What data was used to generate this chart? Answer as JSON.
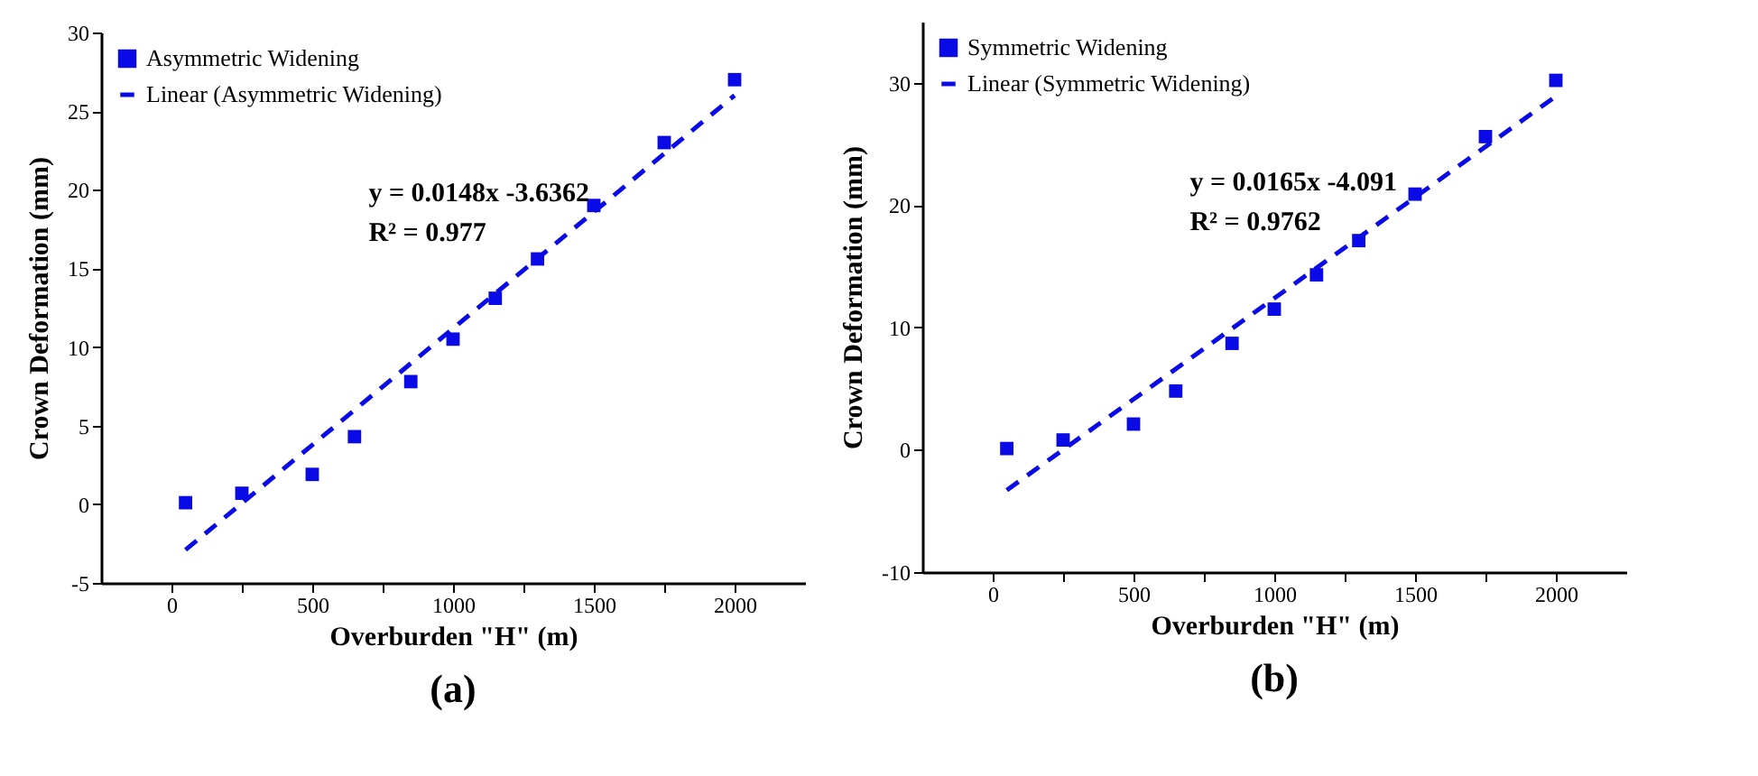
{
  "chart_data": [
    {
      "type": "scatter",
      "xlabel": "Overburden \"H\" (m)",
      "ylabel": "Crown Deformation (mm)",
      "annotations": [
        "y = 0.0148x -3.6362",
        "R² = 0.977",
        "(a)"
      ],
      "series": [
        {
          "name": "Asymmetric Widening",
          "type": "scatter",
          "marker": "square",
          "color": "#0a0ae6",
          "x": [
            50,
            250,
            500,
            650,
            850,
            1000,
            1150,
            1300,
            1500,
            1750,
            2000
          ],
          "values": [
            0.1,
            0.7,
            1.9,
            4.3,
            7.8,
            10.5,
            13.1,
            15.6,
            19.0,
            23.0,
            27.0
          ]
        },
        {
          "name": "Linear (Asymmetric Widening)",
          "type": "line",
          "line_style": "dashed",
          "color": "#0a0ae6",
          "x": [
            50,
            2000
          ],
          "values": [
            -2.9,
            26.0
          ]
        }
      ],
      "xlim": [
        -250,
        2250
      ],
      "xticks": [
        0,
        {
          "value": 250,
          "label": null
        },
        500,
        {
          "value": 750,
          "label": null
        },
        1000,
        {
          "value": 1250,
          "label": null
        },
        1500,
        {
          "value": 1750,
          "label": null
        },
        2000
      ],
      "ylim": [
        -5,
        30
      ],
      "yticks": [
        -5,
        0,
        5,
        10,
        15,
        20,
        25,
        30
      ],
      "grid": false,
      "legend": "top left"
    },
    {
      "type": "scatter",
      "xlabel": "Overburden \"H\" (m)",
      "ylabel": "Crown Deformation (mm)",
      "annotations": [
        "y = 0.0165x -4.091",
        "R² = 0.9762",
        "(b)"
      ],
      "series": [
        {
          "name": "Symmetric Widening",
          "type": "scatter",
          "marker": "square",
          "color": "#0a0ae6",
          "x": [
            50,
            250,
            500,
            650,
            850,
            1000,
            1150,
            1300,
            1500,
            1750,
            2000
          ],
          "values": [
            0.1,
            0.8,
            2.1,
            4.8,
            8.7,
            11.5,
            14.3,
            17.1,
            20.9,
            25.6,
            30.2
          ]
        },
        {
          "name": "Linear (Symmetric Widening)",
          "type": "line",
          "line_style": "dashed",
          "color": "#0a0ae6",
          "x": [
            50,
            2000
          ],
          "values": [
            -3.3,
            28.9
          ]
        }
      ],
      "xlim": [
        -250,
        2250
      ],
      "xticks": [
        0,
        {
          "value": 250,
          "label": null
        },
        500,
        {
          "value": 750,
          "label": null
        },
        1000,
        {
          "value": 1250,
          "label": null
        },
        1500,
        {
          "value": 1750,
          "label": null
        },
        2000
      ],
      "ylim": [
        -10,
        35
      ],
      "yticks": [
        -10,
        0,
        10,
        20,
        30
      ],
      "grid": false,
      "legend": "top left"
    }
  ]
}
